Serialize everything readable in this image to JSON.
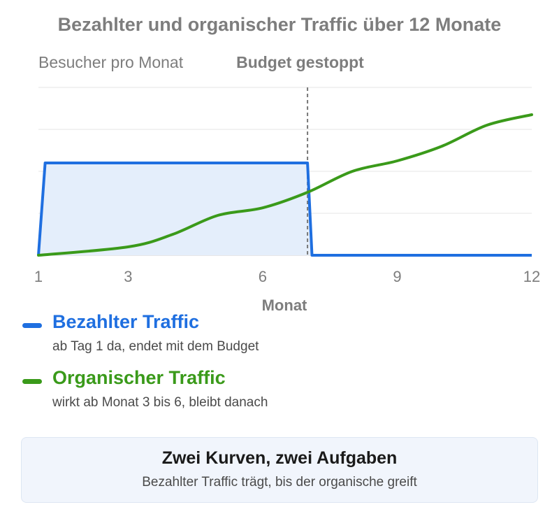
{
  "chart_data": {
    "type": "line",
    "title": "Bezahlter und organischer Traffic über 12 Monate",
    "ylabel": "Besucher pro Monat",
    "xlabel": "Monat",
    "x_ticks": [
      1,
      3,
      6,
      9,
      12
    ],
    "xlim": [
      1,
      12
    ],
    "ylim": [
      0,
      4
    ],
    "grid": true,
    "annotation": {
      "label": "Budget gestoppt",
      "x": 7
    },
    "series": [
      {
        "name": "Bezahlter Traffic",
        "color": "#1f6fe0",
        "fill": "#e4eefb",
        "x": [
          1,
          1.15,
          7,
          7.1,
          12
        ],
        "y": [
          0,
          2.2,
          2.2,
          0,
          0
        ]
      },
      {
        "name": "Organischer Traffic",
        "color": "#3a9a1a",
        "x": [
          1,
          3,
          4,
          5,
          6,
          7,
          8,
          9,
          10,
          11,
          12
        ],
        "y": [
          0,
          0.2,
          0.5,
          0.95,
          1.13,
          1.5,
          2.0,
          2.25,
          2.6,
          3.1,
          3.35
        ]
      }
    ]
  },
  "legend": [
    {
      "label": "Bezahlter Traffic",
      "description": "ab Tag 1 da, endet mit dem Budget",
      "color": "#1f6fe0"
    },
    {
      "label": "Organischer Traffic",
      "description": "wirkt ab Monat 3 bis 6, bleibt danach",
      "color": "#3a9a1a"
    }
  ],
  "summary": {
    "title": "Zwei Kurven, zwei Aufgaben",
    "subtitle": "Bezahlter Traffic trägt, bis der organische greift"
  }
}
